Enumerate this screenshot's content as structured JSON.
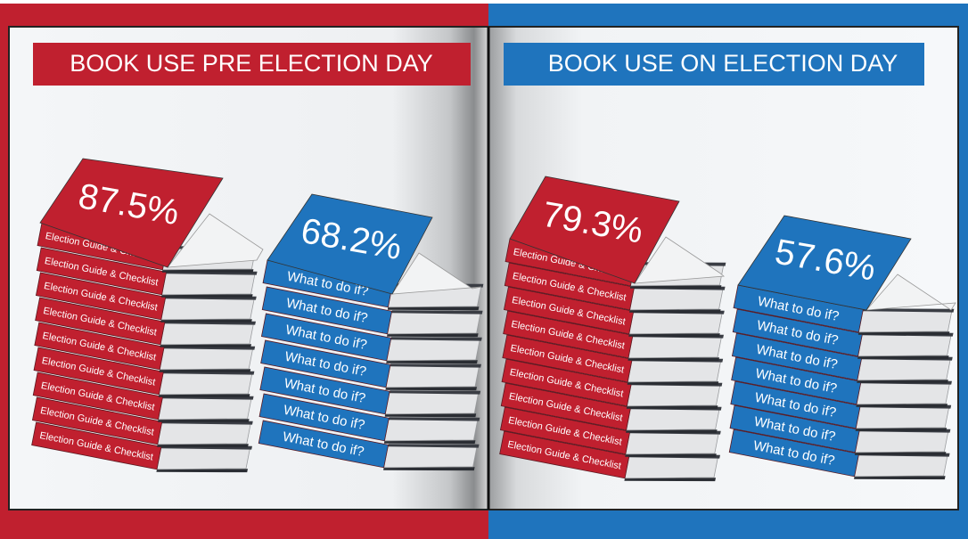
{
  "panels": [
    {
      "title": "BOOK USE PRE ELECTION DAY",
      "stacks": [
        {
          "value": "87.5%",
          "spines": [
            "Election Guide & Checklist",
            "Election Guide & Checklist",
            "Election Guide & Checklist",
            "Election Guide & Checklist",
            "Election Guide & Checklist",
            "Election Guide & Checklist",
            "Election Guide & Checklist",
            "Election Guide & Checklist",
            "Election Guide & Checklist"
          ]
        },
        {
          "value": "68.2%",
          "spines": [
            "What to do if?",
            "What to do if?",
            "What to do if?",
            "What to do if?",
            "What to do if?",
            "What to do if?",
            "What to do if?"
          ]
        }
      ]
    },
    {
      "title": "BOOK USE ON ELECTION DAY",
      "stacks": [
        {
          "value": "79.3%",
          "spines": [
            "Election Guide & Checklist",
            "Election Guide & Checklist",
            "Election Guide & Checklist",
            "Election Guide & Checklist",
            "Election Guide & Checklist",
            "Election Guide & Checklist",
            "Election Guide & Checklist",
            "Election Guide & Checklist",
            "Election Guide & Checklist"
          ]
        },
        {
          "value": "57.6%",
          "spines": [
            "What to do if?",
            "What to do if?",
            "What to do if?",
            "What to do if?",
            "What to do if?",
            "What to do if?",
            "What to do if?"
          ]
        }
      ]
    }
  ]
}
